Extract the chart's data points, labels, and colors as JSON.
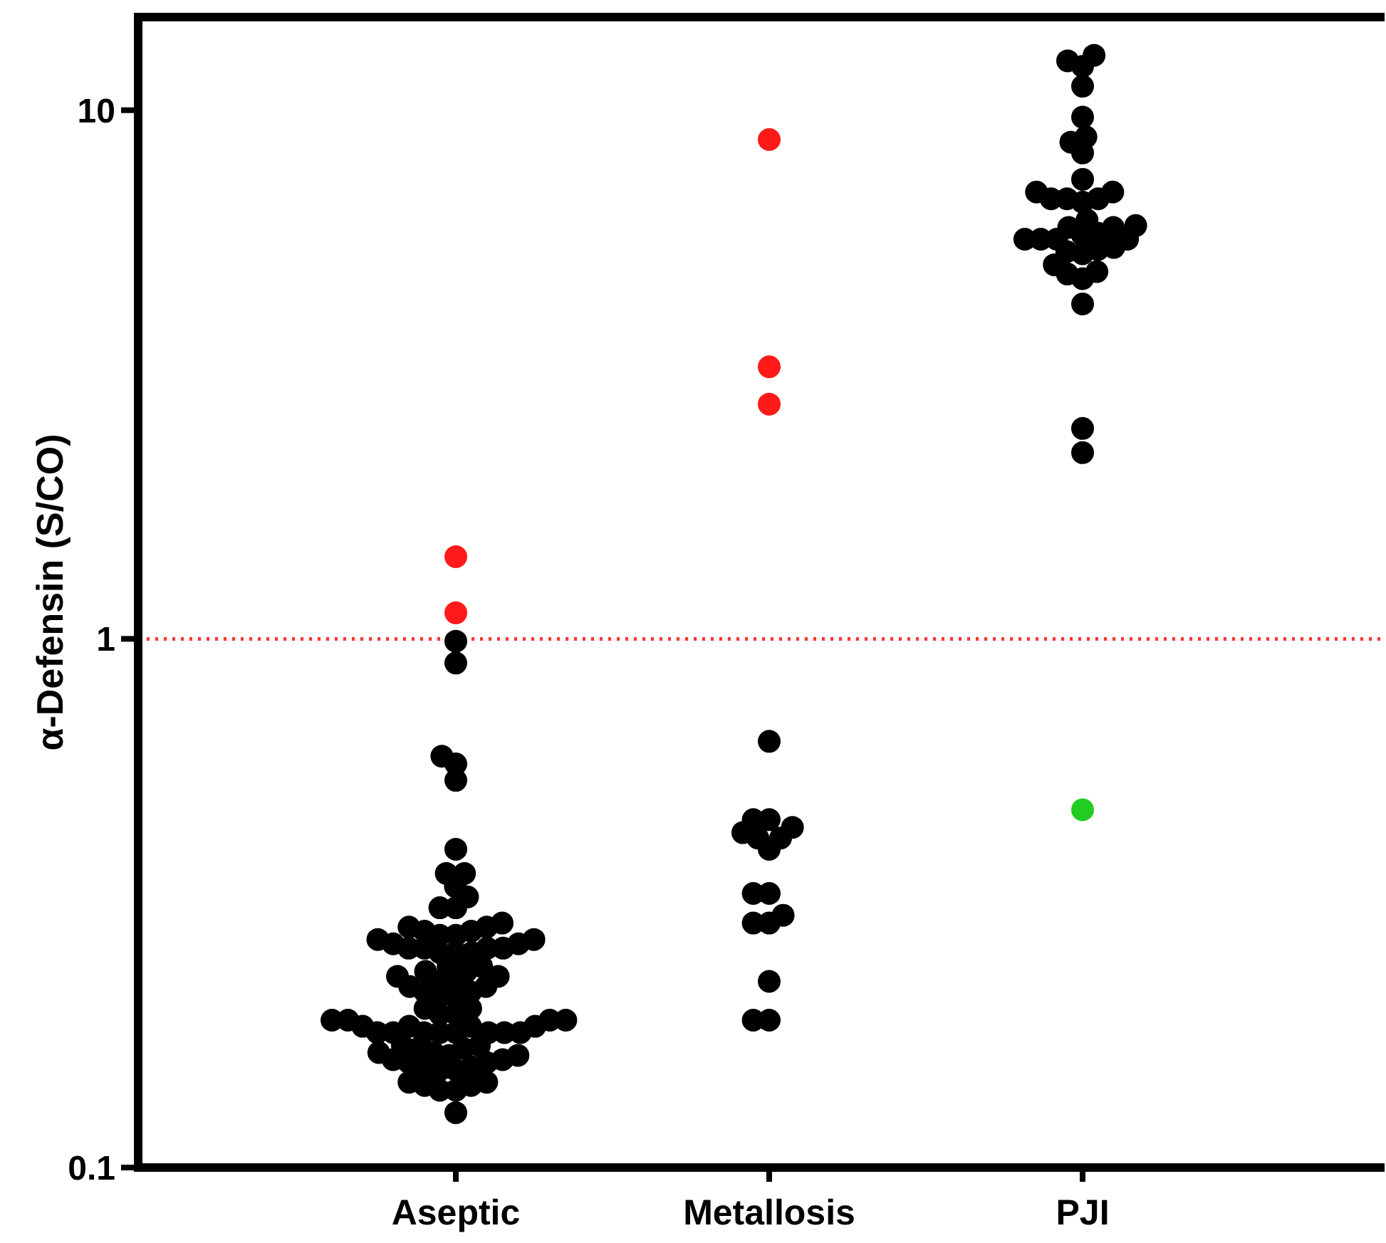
{
  "chart_data": {
    "type": "scatter",
    "ylabel": "α-Defensin (S/CO)",
    "categories": [
      "Aseptic",
      "Metallosis",
      "PJI"
    ],
    "log": "y",
    "ylim": [
      0.1,
      15
    ],
    "yticks": [
      0.1,
      1,
      10
    ],
    "grid": false,
    "marker": "circle",
    "ref_lines": [
      {
        "axis": "y",
        "value": 1,
        "color": "#ff3333",
        "line_style": "dotted"
      }
    ],
    "series": [
      {
        "color": "#000000",
        "x": [
          "Aseptic",
          "Aseptic",
          "Aseptic",
          "Aseptic",
          "Aseptic",
          "Aseptic",
          "Aseptic",
          "Aseptic",
          "Aseptic",
          "Aseptic",
          "Aseptic",
          "Aseptic",
          "Aseptic",
          "Aseptic",
          "Aseptic",
          "Aseptic",
          "Aseptic",
          "Aseptic",
          "Aseptic",
          "Aseptic",
          "Aseptic",
          "Aseptic",
          "Aseptic",
          "Aseptic",
          "Aseptic",
          "Aseptic",
          "Aseptic",
          "Aseptic",
          "Aseptic",
          "Aseptic",
          "Aseptic",
          "Aseptic",
          "Aseptic",
          "Aseptic",
          "Aseptic",
          "Aseptic",
          "Aseptic",
          "Aseptic",
          "Aseptic",
          "Aseptic",
          "Aseptic",
          "Aseptic",
          "Aseptic",
          "Aseptic",
          "Aseptic",
          "Aseptic",
          "Aseptic",
          "Aseptic",
          "Aseptic",
          "Aseptic",
          "Aseptic",
          "Aseptic",
          "Aseptic",
          "Aseptic",
          "Aseptic",
          "Aseptic",
          "Aseptic",
          "Aseptic",
          "Aseptic",
          "Aseptic",
          "Aseptic",
          "Aseptic",
          "Aseptic",
          "Aseptic",
          "Aseptic",
          "Aseptic",
          "Aseptic",
          "Aseptic",
          "Aseptic",
          "Aseptic",
          "Aseptic",
          "Aseptic",
          "Aseptic",
          "Aseptic",
          "Aseptic",
          "Aseptic",
          "Aseptic",
          "Aseptic",
          "Aseptic",
          "Aseptic",
          "Aseptic",
          "Aseptic",
          "Aseptic",
          "Aseptic",
          "Aseptic",
          "Aseptic",
          "Aseptic",
          "Metallosis",
          "Metallosis",
          "Metallosis",
          "Metallosis",
          "Metallosis",
          "Metallosis",
          "Metallosis",
          "Metallosis",
          "Metallosis",
          "Metallosis",
          "Metallosis",
          "Metallosis",
          "Metallosis",
          "Metallosis",
          "Metallosis",
          "Metallosis",
          "PJI",
          "PJI",
          "PJI",
          "PJI",
          "PJI",
          "PJI",
          "PJI",
          "PJI",
          "PJI",
          "PJI",
          "PJI",
          "PJI",
          "PJI",
          "PJI",
          "PJI",
          "PJI",
          "PJI",
          "PJI",
          "PJI",
          "PJI",
          "PJI",
          "PJI",
          "PJI",
          "PJI",
          "PJI",
          "PJI",
          "PJI",
          "PJI",
          "PJI",
          "PJI",
          "PJI",
          "PJI",
          "PJI",
          "PJI",
          "PJI",
          "PJI"
        ],
        "values": [
          0.99,
          0.9,
          0.6,
          0.54,
          0.58,
          0.4,
          0.36,
          0.36,
          0.34,
          0.325,
          0.31,
          0.31,
          0.29,
          0.285,
          0.28,
          0.275,
          0.27,
          0.265,
          0.26,
          0.26,
          0.255,
          0.255,
          0.255,
          0.26,
          0.26,
          0.265,
          0.27,
          0.275,
          0.28,
          0.285,
          0.24,
          0.235,
          0.23,
          0.225,
          0.22,
          0.215,
          0.21,
          0.21,
          0.215,
          0.22,
          0.225,
          0.23,
          0.235,
          0.24,
          0.2,
          0.195,
          0.19,
          0.19,
          0.185,
          0.185,
          0.18,
          0.18,
          0.18,
          0.18,
          0.18,
          0.18,
          0.18,
          0.18,
          0.185,
          0.185,
          0.19,
          0.19,
          0.195,
          0.2,
          0.17,
          0.168,
          0.165,
          0.163,
          0.16,
          0.158,
          0.155,
          0.153,
          0.153,
          0.155,
          0.158,
          0.16,
          0.163,
          0.165,
          0.168,
          0.17,
          0.145,
          0.143,
          0.14,
          0.14,
          0.143,
          0.145,
          0.127,
          0.64,
          0.455,
          0.44,
          0.42,
          0.4,
          0.42,
          0.43,
          0.455,
          0.33,
          0.33,
          0.3,
          0.29,
          0.29,
          0.225,
          0.19,
          0.19,
          12.7,
          12.4,
          12.1,
          11.1,
          9.7,
          8.9,
          8.7,
          8.3,
          7.4,
          7.0,
          6.8,
          6.8,
          6.8,
          7.0,
          6.7,
          6.2,
          6.0,
          5.85,
          5.7,
          5.8,
          6.0,
          6.05,
          5.7,
          5.7,
          5.7,
          5.5,
          5.4,
          5.35,
          5.45,
          5.1,
          4.9,
          4.95,
          4.8,
          4.3,
          2.5,
          2.25
        ]
      },
      {
        "color": "#ff1a1a",
        "x": [
          "Aseptic",
          "Aseptic",
          "Metallosis",
          "Metallosis",
          "Metallosis"
        ],
        "values": [
          1.43,
          1.12,
          8.8,
          3.27,
          2.78
        ]
      },
      {
        "color": "#22cc22",
        "x": [
          "PJI"
        ],
        "values": [
          0.475
        ]
      }
    ]
  }
}
